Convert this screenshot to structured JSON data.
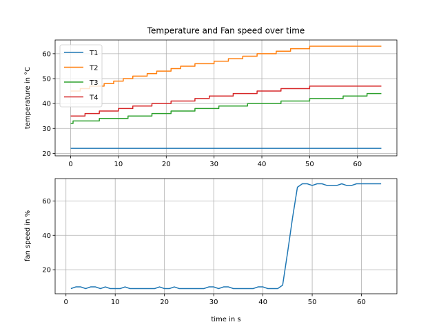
{
  "chart_data": [
    {
      "type": "line",
      "title": "Temperature and Fan speed over time",
      "xlabel": "",
      "ylabel": "temperature in °C",
      "xlim": [
        -3.25,
        68.25
      ],
      "ylim": [
        19.0,
        65.5
      ],
      "xticks": [
        0,
        10,
        20,
        30,
        40,
        50,
        60
      ],
      "yticks": [
        20,
        30,
        40,
        50,
        60
      ],
      "grid": true,
      "step": true,
      "legend": {
        "placement": "top-left",
        "entries": [
          "T1",
          "T2",
          "T3",
          "T4"
        ]
      },
      "series": [
        {
          "name": "T1",
          "color": "#1f77b4",
          "points": [
            [
              0,
              22
            ],
            [
              65,
              22
            ]
          ]
        },
        {
          "name": "T2",
          "color": "#ff7f0e",
          "points": [
            [
              0,
              45
            ],
            [
              2,
              46
            ],
            [
              4,
              47
            ],
            [
              7,
              48
            ],
            [
              9,
              49
            ],
            [
              11,
              50
            ],
            [
              13,
              51
            ],
            [
              16,
              52
            ],
            [
              18,
              53
            ],
            [
              21,
              54
            ],
            [
              23,
              55
            ],
            [
              26,
              56
            ],
            [
              30,
              57
            ],
            [
              33,
              58
            ],
            [
              36,
              59
            ],
            [
              39,
              60
            ],
            [
              43,
              61
            ],
            [
              46,
              62
            ],
            [
              50,
              63
            ],
            [
              65,
              63
            ]
          ]
        },
        {
          "name": "T3",
          "color": "#2ca02c",
          "points": [
            [
              0,
              32
            ],
            [
              0.5,
              33
            ],
            [
              6,
              34
            ],
            [
              12,
              35
            ],
            [
              17,
              36
            ],
            [
              21,
              37
            ],
            [
              26,
              38
            ],
            [
              31,
              39
            ],
            [
              37,
              40
            ],
            [
              44,
              41
            ],
            [
              50,
              42
            ],
            [
              57,
              43
            ],
            [
              62,
              44
            ],
            [
              65,
              44
            ]
          ]
        },
        {
          "name": "T4",
          "color": "#d62728",
          "points": [
            [
              0,
              35
            ],
            [
              3,
              36
            ],
            [
              6,
              37
            ],
            [
              10,
              38
            ],
            [
              13,
              39
            ],
            [
              17,
              40
            ],
            [
              21,
              41
            ],
            [
              26,
              42
            ],
            [
              29,
              43
            ],
            [
              34,
              44
            ],
            [
              39,
              45
            ],
            [
              44,
              46
            ],
            [
              50,
              47
            ],
            [
              65,
              47
            ]
          ]
        }
      ]
    },
    {
      "type": "line",
      "title": "",
      "xlabel": "time in s",
      "ylabel": "fan speed in %",
      "xlim": [
        -2.2,
        67.2
      ],
      "ylim": [
        6.0,
        73.0
      ],
      "xticks": [
        0,
        10,
        20,
        30,
        40,
        50,
        60
      ],
      "yticks": [
        20,
        40,
        60
      ],
      "grid": true,
      "series": [
        {
          "color": "#1f77b4",
          "x": [
            1,
            2,
            3,
            4,
            5,
            6,
            7,
            8,
            9,
            10,
            11,
            12,
            13,
            14,
            15,
            16,
            17,
            18,
            19,
            20,
            21,
            22,
            23,
            24,
            25,
            26,
            27,
            28,
            29,
            30,
            31,
            32,
            33,
            34,
            35,
            36,
            37,
            38,
            39,
            40,
            41,
            42,
            43,
            44,
            45,
            46,
            47,
            48,
            49,
            50,
            51,
            52,
            53,
            54,
            55,
            56,
            57,
            58,
            59,
            60,
            61,
            62,
            63,
            64
          ],
          "y": [
            9,
            10,
            10,
            9,
            10,
            10,
            9,
            10,
            9,
            9,
            9,
            10,
            9,
            9,
            9,
            9,
            9,
            9,
            10,
            9,
            9,
            10,
            9,
            9,
            9,
            9,
            9,
            9,
            10,
            10,
            9,
            10,
            10,
            9,
            9,
            9,
            9,
            9,
            10,
            10,
            9,
            9,
            9,
            11,
            30,
            50,
            68,
            70,
            70,
            69,
            70,
            70,
            69,
            69,
            69,
            70,
            69,
            69,
            70,
            70,
            70,
            70,
            70,
            70
          ]
        }
      ]
    }
  ]
}
